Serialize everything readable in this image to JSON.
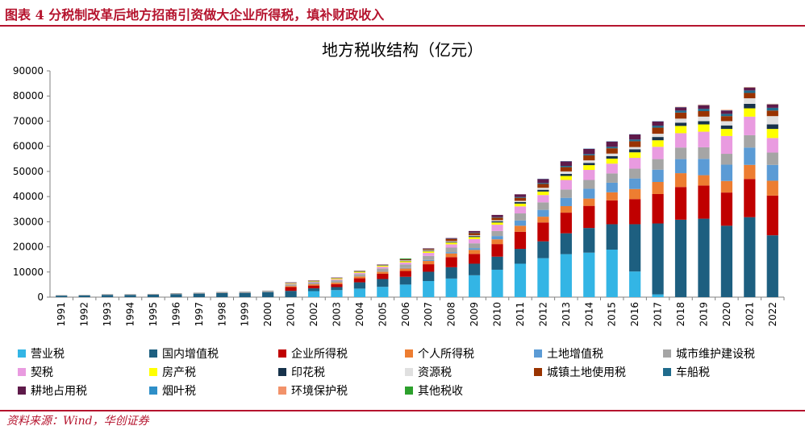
{
  "figure": {
    "heading": "图表 4   分税制改革后地方招商引资做大企业所得税，填补财政收入",
    "source": "资料来源：Wind，华创证券"
  },
  "chart_data": {
    "type": "bar",
    "stacked": true,
    "title": "地方税收结构（亿元）",
    "xlabel": "",
    "ylabel": "",
    "ylim": [
      0,
      90000
    ],
    "yticks": [
      "0",
      "10000",
      "20000",
      "30000",
      "40000",
      "50000",
      "60000",
      "70000",
      "80000",
      "90000"
    ],
    "grid": false,
    "legend_position": "bottom",
    "categories": [
      "1991",
      "1992",
      "1993",
      "1994",
      "1995",
      "1996",
      "1997",
      "1998",
      "1999",
      "2000",
      "2001",
      "2002",
      "2003",
      "2004",
      "2005",
      "2006",
      "2007",
      "2008",
      "2009",
      "2010",
      "2011",
      "2012",
      "2013",
      "2014",
      "2015",
      "2016",
      "2017",
      "2018",
      "2019",
      "2020",
      "2021",
      "2022"
    ],
    "series": [
      {
        "name": "营业税",
        "color": "#33b5e5",
        "values": [
          0,
          0,
          0,
          0,
          0,
          0,
          0,
          0,
          0,
          0,
          0,
          2400,
          2800,
          3400,
          4100,
          5000,
          6400,
          7400,
          8700,
          10900,
          13300,
          15500,
          17100,
          17700,
          18900,
          10200,
          1100,
          0,
          0,
          0,
          0,
          0
        ]
      },
      {
        "name": "国内增值税",
        "color": "#1d5f80",
        "values": [
          600,
          700,
          900,
          900,
          1000,
          1200,
          1400,
          1600,
          1700,
          2000,
          2500,
          1100,
          1200,
          2500,
          3100,
          3100,
          3700,
          4500,
          4600,
          5200,
          5900,
          6700,
          8300,
          9800,
          10100,
          18800,
          28200,
          30800,
          31200,
          28400,
          31800,
          24600
        ]
      },
      {
        "name": "企业所得税",
        "color": "#c00000",
        "values": [
          0,
          0,
          0,
          0,
          0,
          0,
          0,
          0,
          0,
          0,
          1500,
          1100,
          1200,
          1600,
          2100,
          2300,
          3000,
          4000,
          3900,
          5000,
          6800,
          7500,
          8200,
          8800,
          9500,
          10000,
          11700,
          13000,
          13200,
          13200,
          15200,
          15800
        ]
      },
      {
        "name": "个人所得税",
        "color": "#ed7d31",
        "values": [
          0,
          0,
          0,
          0,
          0,
          0,
          0,
          0,
          0,
          0,
          400,
          500,
          600,
          700,
          800,
          1000,
          1300,
          1500,
          1600,
          1900,
          2400,
          2300,
          2600,
          2900,
          3200,
          4000,
          4800,
          5500,
          4100,
          4600,
          5600,
          5900
        ]
      },
      {
        "name": "土地增值税",
        "color": "#5b9bd5",
        "values": [
          0,
          0,
          0,
          0,
          0,
          0,
          0,
          0,
          0,
          0,
          0,
          0,
          0,
          0,
          100,
          200,
          400,
          500,
          700,
          1300,
          2100,
          2700,
          3300,
          3900,
          3800,
          4200,
          4900,
          5600,
          6500,
          6500,
          6900,
          6300
        ]
      },
      {
        "name": "城市维护建设税",
        "color": "#a5a5a5",
        "values": [
          200,
          200,
          300,
          300,
          300,
          400,
          400,
          500,
          500,
          600,
          700,
          800,
          900,
          1000,
          1200,
          1400,
          1600,
          1800,
          1900,
          2000,
          2800,
          3000,
          3300,
          3500,
          3700,
          3900,
          4200,
          4600,
          4600,
          4300,
          4900,
          4900
        ]
      },
      {
        "name": "契税",
        "color": "#e99be0",
        "values": [
          0,
          0,
          0,
          0,
          0,
          0,
          0,
          0,
          0,
          0,
          200,
          200,
          400,
          500,
          700,
          800,
          1200,
          1300,
          1700,
          2500,
          2800,
          2900,
          3800,
          4000,
          3900,
          4300,
          4900,
          5700,
          6200,
          7100,
          7400,
          5800
        ]
      },
      {
        "name": "房产税",
        "color": "#ffff00",
        "values": [
          0,
          0,
          0,
          0,
          0,
          0,
          0,
          0,
          0,
          0,
          200,
          200,
          300,
          400,
          400,
          500,
          600,
          700,
          800,
          900,
          1100,
          1400,
          1600,
          1900,
          2000,
          2200,
          2600,
          2900,
          2900,
          2800,
          3300,
          3600
        ]
      },
      {
        "name": "印花税",
        "color": "#17324b",
        "values": [
          0,
          0,
          0,
          0,
          0,
          0,
          0,
          0,
          0,
          0,
          100,
          100,
          100,
          200,
          200,
          200,
          200,
          300,
          400,
          500,
          600,
          700,
          800,
          900,
          1000,
          1200,
          1300,
          1300,
          1300,
          1400,
          1800,
          1800
        ]
      },
      {
        "name": "资源税",
        "color": "#e0e0e0",
        "values": [
          0,
          0,
          0,
          0,
          0,
          0,
          0,
          0,
          0,
          0,
          100,
          100,
          100,
          100,
          100,
          200,
          300,
          300,
          300,
          400,
          500,
          800,
          1000,
          1000,
          1000,
          900,
          1300,
          1600,
          1800,
          1700,
          2200,
          3300
        ]
      },
      {
        "name": "城镇土地使用税",
        "color": "#993300",
        "values": [
          0,
          0,
          0,
          0,
          0,
          0,
          0,
          0,
          0,
          0,
          100,
          100,
          100,
          100,
          100,
          200,
          400,
          800,
          900,
          1000,
          1200,
          1500,
          1700,
          2000,
          2100,
          2300,
          2400,
          2400,
          2200,
          2000,
          2100,
          2200
        ]
      },
      {
        "name": "车船税",
        "color": "#1f6b8c",
        "values": [
          0,
          0,
          0,
          0,
          0,
          0,
          0,
          0,
          0,
          0,
          0,
          0,
          0,
          0,
          0,
          0,
          100,
          100,
          200,
          200,
          300,
          400,
          500,
          500,
          600,
          700,
          800,
          800,
          900,
          900,
          1000,
          1100
        ]
      },
      {
        "name": "耕地占用税",
        "color": "#5e1a4a",
        "values": [
          0,
          0,
          0,
          0,
          0,
          0,
          0,
          0,
          0,
          0,
          100,
          100,
          100,
          100,
          100,
          200,
          200,
          300,
          600,
          900,
          1100,
          1600,
          1800,
          2100,
          2100,
          2000,
          1700,
          1300,
          1400,
          1300,
          1100,
          1300
        ]
      },
      {
        "name": "烟叶税",
        "color": "#2e8fc8",
        "values": [
          0,
          0,
          0,
          0,
          0,
          0,
          0,
          0,
          0,
          0,
          0,
          0,
          0,
          0,
          0,
          0,
          0,
          0,
          0,
          0,
          0,
          100,
          100,
          100,
          100,
          100,
          100,
          100,
          100,
          100,
          100,
          100
        ]
      },
      {
        "name": "环境保护税",
        "color": "#f2926a",
        "values": [
          0,
          0,
          0,
          0,
          0,
          0,
          0,
          0,
          0,
          0,
          0,
          0,
          0,
          0,
          0,
          0,
          0,
          0,
          0,
          0,
          0,
          0,
          0,
          0,
          0,
          0,
          0,
          100,
          200,
          200,
          200,
          200
        ]
      },
      {
        "name": "其他税收",
        "color": "#2ca02c",
        "values": [
          0,
          0,
          0,
          0,
          0,
          0,
          0,
          0,
          0,
          0,
          0,
          0,
          0,
          0,
          0,
          300,
          0,
          0,
          0,
          0,
          0,
          0,
          0,
          0,
          0,
          0,
          0,
          0,
          0,
          0,
          0,
          0
        ]
      }
    ]
  }
}
